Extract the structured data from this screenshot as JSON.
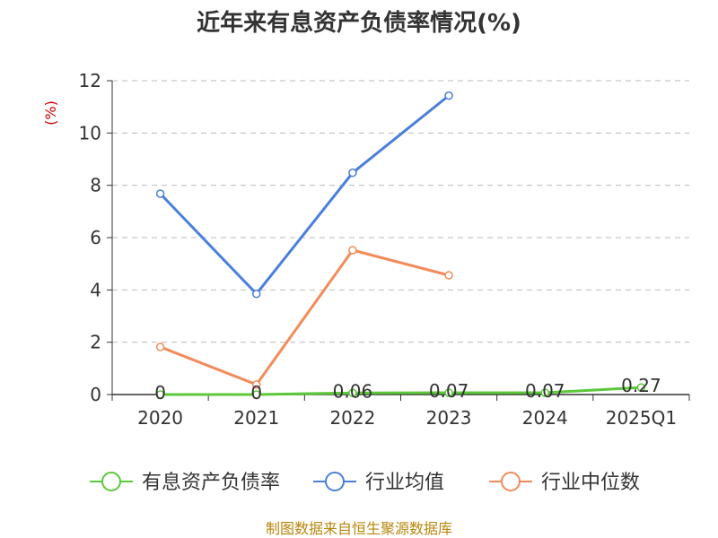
{
  "chart_data": {
    "type": "line",
    "title": "近年来有息资产负债率情况(%)",
    "ylabel": "(%)",
    "xlabel": "",
    "categories": [
      "2020",
      "2021",
      "2022",
      "2023",
      "2024",
      "2025Q1"
    ],
    "ylim": [
      0,
      12
    ],
    "yticks": [
      0,
      2,
      4,
      6,
      8,
      10,
      12
    ],
    "grid": true,
    "legend_position": "bottom",
    "series": [
      {
        "name": "有息资产负债率",
        "color": "#5cc83a",
        "values": [
          0,
          0,
          0.06,
          0.07,
          0.07,
          0.27
        ],
        "labels": [
          "0",
          "0",
          "0.06",
          "0.07",
          "0.07",
          "0.27"
        ]
      },
      {
        "name": "行业均值",
        "color": "#4a7fdb",
        "values": [
          7.68,
          3.85,
          8.48,
          11.43,
          null,
          null
        ]
      },
      {
        "name": "行业中位数",
        "color": "#f28b5a",
        "values": [
          1.82,
          0.38,
          5.52,
          4.56,
          null,
          null
        ]
      }
    ]
  },
  "source": "制图数据来自恒生聚源数据库"
}
